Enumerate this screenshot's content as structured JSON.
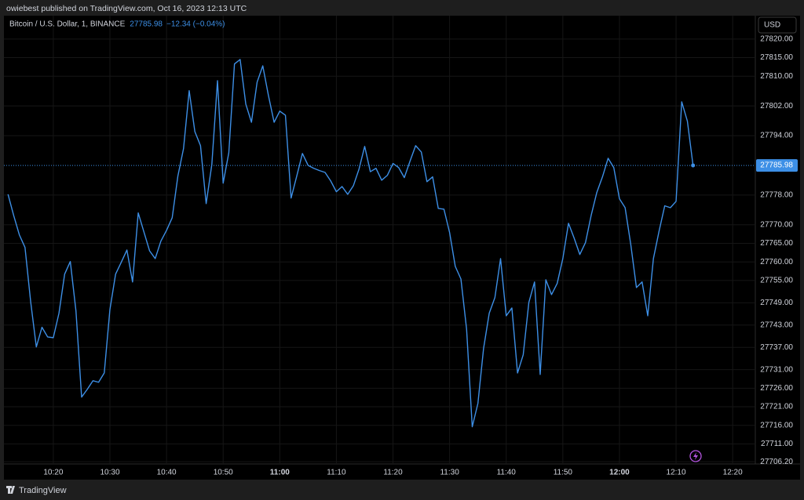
{
  "chart_data": {
    "type": "line",
    "attribution": "owiebest published on TradingView.com, Oct 16, 2023 12:13 UTC",
    "change": "−12.34 (−0.04%)",
    "currency": "USD",
    "branding": "TradingView",
    "x": [
      "10:12",
      "10:13",
      "10:14",
      "10:15",
      "10:16",
      "10:17",
      "10:18",
      "10:19",
      "10:20",
      "10:21",
      "10:22",
      "10:23",
      "10:24",
      "10:25",
      "10:26",
      "10:27",
      "10:28",
      "10:29",
      "10:30",
      "10:31",
      "10:32",
      "10:33",
      "10:34",
      "10:35",
      "10:36",
      "10:37",
      "10:38",
      "10:39",
      "10:40",
      "10:41",
      "10:42",
      "10:43",
      "10:44",
      "10:45",
      "10:46",
      "10:47",
      "10:48",
      "10:49",
      "10:50",
      "10:51",
      "10:52",
      "10:53",
      "10:54",
      "10:55",
      "10:56",
      "10:57",
      "10:58",
      "10:59",
      "11:00",
      "11:01",
      "11:02",
      "11:03",
      "11:04",
      "11:05",
      "11:06",
      "11:07",
      "11:08",
      "11:09",
      "11:10",
      "11:11",
      "11:12",
      "11:13",
      "11:14",
      "11:15",
      "11:16",
      "11:17",
      "11:18",
      "11:19",
      "11:20",
      "11:21",
      "11:22",
      "11:23",
      "11:24",
      "11:25",
      "11:26",
      "11:27",
      "11:28",
      "11:29",
      "11:30",
      "11:31",
      "11:32",
      "11:33",
      "11:34",
      "11:35",
      "11:36",
      "11:37",
      "11:38",
      "11:39",
      "11:40",
      "11:41",
      "11:42",
      "11:43",
      "11:44",
      "11:45",
      "11:46",
      "11:47",
      "11:48",
      "11:49",
      "11:50",
      "11:51",
      "11:52",
      "11:53",
      "11:54",
      "11:55",
      "11:56",
      "11:57",
      "11:58",
      "11:59",
      "12:00",
      "12:01",
      "12:02",
      "12:03",
      "12:04",
      "12:05",
      "12:06",
      "12:07",
      "12:08",
      "12:09",
      "12:10",
      "12:11",
      "12:12",
      "12:13"
    ],
    "series": [
      {
        "name": "Bitcoin / U.S. Dollar, 1, BINANCE",
        "color": "#3d8fe6",
        "values": [
          27778.2,
          27772.5,
          27767.3,
          27763.9,
          27749.3,
          27737.1,
          27742.4,
          27739.8,
          27739.6,
          27746.2,
          27756.7,
          27760.1,
          27746.8,
          27723.6,
          27725.7,
          27728.0,
          27727.6,
          27730.1,
          27747.2,
          27756.7,
          27759.9,
          27763.2,
          27754.6,
          27773.2,
          27768.1,
          27763.0,
          27760.9,
          27765.6,
          27768.5,
          27771.9,
          27783.1,
          27790.5,
          27806.1,
          27795.1,
          27791.3,
          27775.7,
          27786.2,
          27808.8,
          27781.2,
          27789.4,
          27813.3,
          27814.5,
          27802.5,
          27797.6,
          27808.4,
          27812.8,
          27804.8,
          27797.6,
          27800.6,
          27799.5,
          27777.2,
          27783.1,
          27789.2,
          27786.0,
          27785.2,
          27784.6,
          27784.1,
          27781.8,
          27778.9,
          27780.3,
          27778.2,
          27780.5,
          27785.0,
          27791.1,
          27784.3,
          27785.2,
          27782.0,
          27783.3,
          27786.5,
          27785.4,
          27782.7,
          27787.1,
          27791.3,
          27789.6,
          27781.6,
          27782.9,
          27774.4,
          27774.2,
          27767.9,
          27758.8,
          27755.4,
          27741.9,
          27715.6,
          27721.9,
          27736.7,
          27746.2,
          27750.4,
          27760.9,
          27745.5,
          27747.6,
          27730.1,
          27735.0,
          27749.1,
          27754.6,
          27729.7,
          27755.2,
          27751.2,
          27754.2,
          27760.9,
          27770.4,
          27766.4,
          27762.0,
          27765.2,
          27772.5,
          27778.7,
          27782.9,
          27787.9,
          27785.4,
          27777.0,
          27774.6,
          27764.7,
          27753.1,
          27754.6,
          27745.5,
          27760.9,
          27768.3,
          27775.1,
          27774.6,
          27776.3,
          27803.1,
          27797.9,
          27785.98
        ]
      }
    ],
    "xlim": [
      "10:11",
      "12:24"
    ],
    "xticks": [
      "10:20",
      "10:30",
      "10:40",
      "10:50",
      "11:00",
      "11:10",
      "11:20",
      "11:30",
      "11:40",
      "11:50",
      "12:00",
      "12:10",
      "12:20"
    ],
    "ylim": [
      27705.6,
      27826.3
    ],
    "yticks": [
      {
        "value": 27820,
        "label": "27820.00"
      },
      {
        "value": 27815,
        "label": "27815.00"
      },
      {
        "value": 27810,
        "label": "27810.00"
      },
      {
        "value": 27802,
        "label": "27802.00"
      },
      {
        "value": 27794,
        "label": "27794.00"
      },
      {
        "value": 27778,
        "label": "27778.00"
      },
      {
        "value": 27770,
        "label": "27770.00"
      },
      {
        "value": 27765,
        "label": "27765.00"
      },
      {
        "value": 27760,
        "label": "27760.00"
      },
      {
        "value": 27755,
        "label": "27755.00"
      },
      {
        "value": 27749,
        "label": "27749.00"
      },
      {
        "value": 27743,
        "label": "27743.00"
      },
      {
        "value": 27737,
        "label": "27737.00"
      },
      {
        "value": 27731,
        "label": "27731.00"
      },
      {
        "value": 27726,
        "label": "27726.00"
      },
      {
        "value": 27721,
        "label": "27721.00"
      },
      {
        "value": 27716,
        "label": "27716.00"
      },
      {
        "value": 27711,
        "label": "27711.00"
      },
      {
        "value": 27706.2,
        "label": "27706.20"
      }
    ],
    "grid": true
  }
}
